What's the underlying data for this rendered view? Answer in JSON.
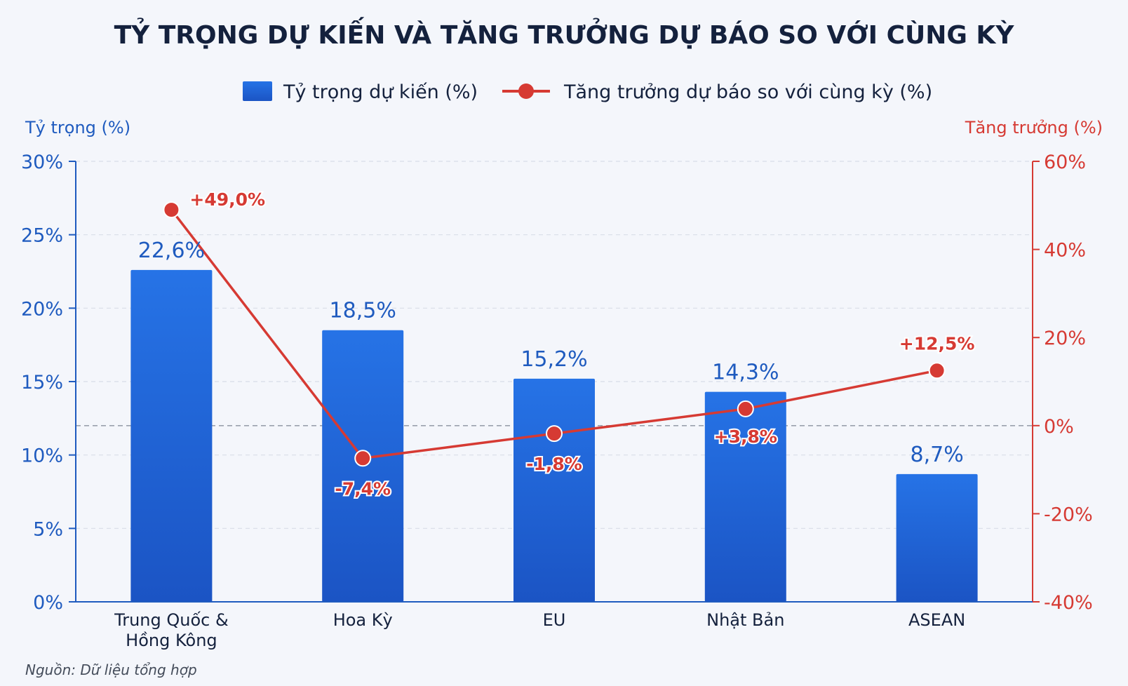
{
  "chart_data": {
    "type": "bar",
    "title": "TỶ TRỌNG DỰ KIẾN VÀ TĂNG TRƯỞNG DỰ BÁO SO VỚI CÙNG KỲ",
    "categories": [
      [
        "Trung Quốc &",
        "Hồng Kông"
      ],
      [
        "Hoa Kỳ"
      ],
      [
        "EU"
      ],
      [
        "Nhật Bản"
      ],
      [
        "ASEAN"
      ]
    ],
    "series": [
      {
        "name": "Tỷ trọng dự kiến (%)",
        "type": "bar",
        "axis": "left",
        "values": [
          22.6,
          18.5,
          15.2,
          14.3,
          8.7
        ],
        "labels": [
          "22,6%",
          "18,5%",
          "15,2%",
          "14,3%",
          "8,7%"
        ],
        "color": "#2167d8"
      },
      {
        "name": "Tăng trưởng dự báo so với cùng kỳ (%)",
        "type": "line",
        "axis": "right",
        "values": [
          49.0,
          -7.4,
          -1.8,
          3.8,
          12.5
        ],
        "labels": [
          "+49,0%",
          "-7,4%",
          "-1,8%",
          "+3,8%",
          "+12,5%"
        ],
        "color": "#d63a33"
      }
    ],
    "left_axis": {
      "label": "Tỷ trọng (%)",
      "min": 0,
      "max": 30,
      "ticks": [
        0,
        5,
        10,
        15,
        20,
        25,
        30
      ],
      "tick_labels": [
        "0%",
        "5%",
        "10%",
        "15%",
        "20%",
        "25%",
        "30%"
      ],
      "color": "#1f5bbf"
    },
    "right_axis": {
      "label": "Tăng trưởng (%)",
      "min": -40,
      "max": 60,
      "ticks": [
        -40,
        -20,
        0,
        20,
        40,
        60
      ],
      "tick_labels": [
        "-40%",
        "-20%",
        "0%",
        "20%",
        "40%",
        "60%"
      ],
      "color": "#d63a33"
    },
    "grid": true,
    "zero_line_right": true,
    "legend": "top-center",
    "source": "Nguồn: Dữ liệu tổng hợp",
    "colors": {
      "title": "#14213d",
      "axis_text": "#1f5bbf",
      "growth": "#d63a33",
      "bar": "#2167d8"
    }
  }
}
